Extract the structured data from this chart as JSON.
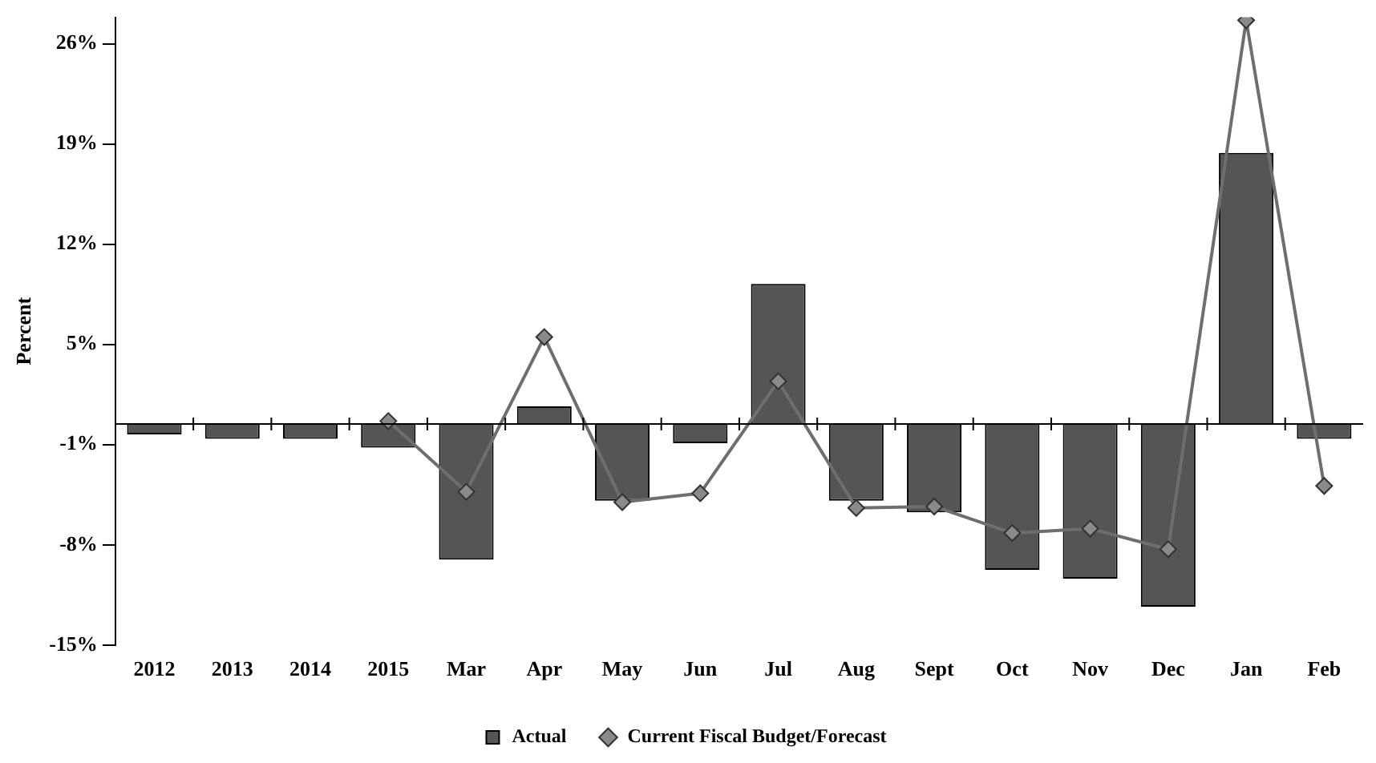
{
  "chart_data": {
    "type": "bar",
    "ylabel": "Percent",
    "categories": [
      "2012",
      "2013",
      "2014",
      "2015",
      "Mar",
      "Apr",
      "May",
      "Jun",
      "Jul",
      "Aug",
      "Sept",
      "Oct",
      "Nov",
      "Dec",
      "Jan",
      "Feb"
    ],
    "series": [
      {
        "name": "Actual",
        "color": "#555555",
        "values": [
          -0.7,
          -1.0,
          -1.0,
          -1.6,
          -9.2,
          1.2,
          -5.2,
          -1.3,
          9.5,
          -5.2,
          -6.0,
          -9.9,
          -10.5,
          -12.4,
          18.4,
          -1.0
        ]
      },
      {
        "name": "Current Fiscal Budget/Forecast",
        "type": "line",
        "color": "#6e6e6e",
        "marker": "diamond",
        "values": [
          null,
          null,
          null,
          0.2,
          -4.6,
          5.9,
          -5.3,
          -4.7,
          2.9,
          -5.7,
          -5.6,
          -7.4,
          -7.1,
          -8.5,
          27.4,
          -4.2
        ]
      }
    ],
    "ylim": [
      -15,
      27.6
    ],
    "yticks": [
      {
        "value": -15,
        "label": "-15%"
      },
      {
        "value": -8.2,
        "label": "-8%"
      },
      {
        "value": -1.4,
        "label": "-1%"
      },
      {
        "value": 5.4,
        "label": "5%"
      },
      {
        "value": 12.2,
        "label": "12%"
      },
      {
        "value": 19,
        "label": "19%"
      },
      {
        "value": 25.8,
        "label": "26%"
      }
    ],
    "grid": false,
    "legend": "bottom"
  }
}
